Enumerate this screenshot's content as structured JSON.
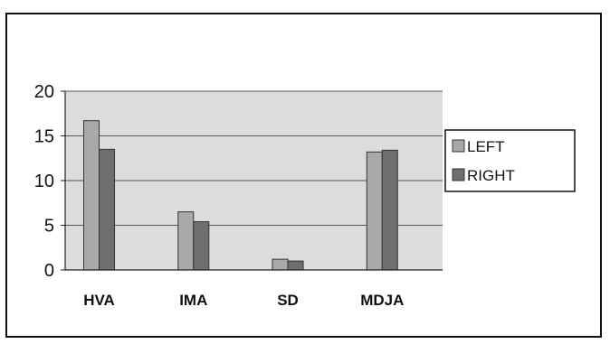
{
  "chart_data": {
    "type": "bar",
    "title": "",
    "xlabel": "",
    "ylabel": "",
    "categories": [
      "HVA",
      "IMA",
      "SD",
      "MDJA"
    ],
    "series": [
      {
        "name": "LEFT",
        "values": [
          16.7,
          6.5,
          1.2,
          13.2
        ],
        "color": "#a9a9a9"
      },
      {
        "name": "RIGHT",
        "values": [
          13.5,
          5.4,
          1.0,
          13.4
        ],
        "color": "#6f6f6f"
      }
    ],
    "ylim": [
      0,
      20
    ],
    "yticks": [
      "0",
      "5",
      "10",
      "15",
      "20"
    ],
    "grid": true,
    "legend_position": "right",
    "plot_background": "#dcdcdc"
  }
}
